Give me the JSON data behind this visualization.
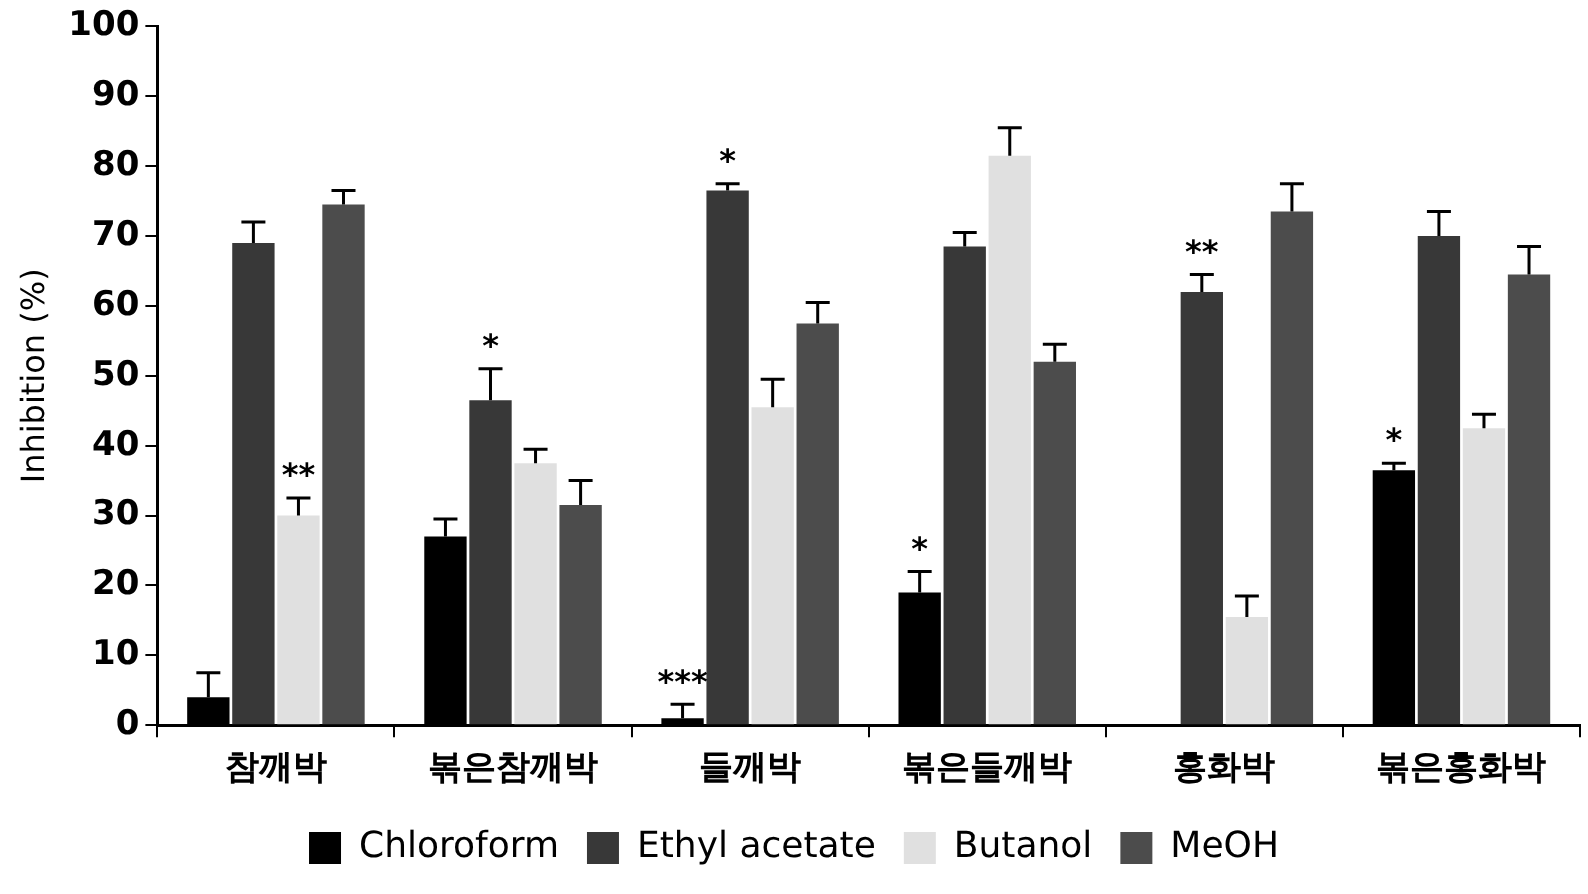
{
  "chart_data": {
    "type": "bar",
    "ylabel": "Inhibition (%)",
    "categories": [
      "참깨박",
      "볶은참깨박",
      "들깨박",
      "볶은들깨박",
      "홍화박",
      "볶은홍화박"
    ],
    "series": [
      {
        "name": "Chloroform",
        "color": "#000000",
        "values": [
          4,
          27,
          1,
          19,
          null,
          36.5
        ],
        "errors": [
          3.5,
          2.5,
          2,
          3,
          null,
          1
        ]
      },
      {
        "name": "Ethyl acetate",
        "color": "#383838",
        "values": [
          69,
          46.5,
          76.5,
          68.5,
          62,
          70
        ],
        "errors": [
          3,
          4.5,
          1,
          2,
          2.5,
          3.5
        ]
      },
      {
        "name": "Butanol",
        "color": "#e0e0e0",
        "values": [
          30,
          37.5,
          45.5,
          81.5,
          15.5,
          42.5
        ],
        "errors": [
          2.5,
          2,
          4,
          4,
          3,
          2
        ]
      },
      {
        "name": "MeOH",
        "color": "#4c4c4c",
        "values": [
          74.5,
          31.5,
          57.5,
          52,
          73.5,
          64.5
        ],
        "errors": [
          2,
          3.5,
          3,
          2.5,
          4,
          4
        ]
      }
    ],
    "ylim": [
      0,
      100
    ],
    "yticks": [
      0,
      10,
      20,
      30,
      40,
      50,
      60,
      70,
      80,
      90,
      100
    ],
    "grid": false,
    "legend": "bottom",
    "annotations": [
      {
        "text": "**",
        "x": "참깨박",
        "y": 32.5
      },
      {
        "text": "*",
        "x": "볶은참깨박",
        "y": 46.5
      },
      {
        "text": "***",
        "x": "들깨박",
        "y": 3
      },
      {
        "text": "*",
        "x": "들깨박",
        "y": 77.5
      },
      {
        "text": "*",
        "x": "볶은들깨박",
        "y": 22
      },
      {
        "text": "**",
        "x": "홍화박",
        "y": 62
      },
      {
        "text": "*",
        "x": "볶은홍화박",
        "y": 37.5
      }
    ]
  }
}
